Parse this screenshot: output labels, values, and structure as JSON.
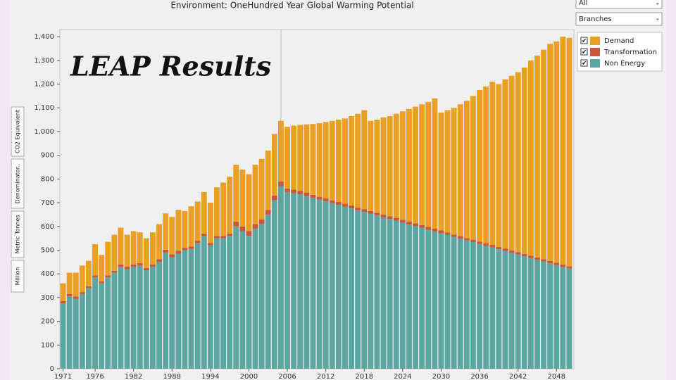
{
  "ui": {
    "dropdowns": [
      "All",
      "Branches"
    ],
    "side_tabs": [
      "CO2 Equivalent",
      "Denominator..",
      "Metric Tonnes",
      "Million"
    ],
    "overlay_title": "LEAP Results"
  },
  "chart_data": {
    "type": "stacked_bar",
    "title": "Environment: OneHundred Year Global Warming Potential",
    "categories": [
      "1971",
      null,
      null,
      null,
      null,
      "1976",
      null,
      null,
      null,
      null,
      null,
      "1982",
      null,
      null,
      null,
      null,
      null,
      "1988",
      null,
      null,
      null,
      null,
      null,
      "1994",
      null,
      null,
      null,
      null,
      null,
      "2000",
      null,
      null,
      null,
      null,
      null,
      "2006",
      null,
      null,
      null,
      null,
      null,
      "2012",
      null,
      null,
      null,
      null,
      null,
      "2018",
      null,
      null,
      null,
      null,
      null,
      "2024",
      null,
      null,
      null,
      null,
      null,
      "2030",
      null,
      null,
      null,
      null,
      null,
      "2036",
      null,
      null,
      null,
      null,
      null,
      "2042",
      null,
      null,
      null,
      null,
      null,
      "2048",
      null,
      null
    ],
    "series": [
      {
        "name": "Demand",
        "color": "#e9a024",
        "values": [
          75,
          90,
          100,
          112,
          107,
          132,
          112,
          142,
          152,
          155,
          135,
          140,
          130,
          125,
          135,
          148,
          153,
          158,
          173,
          155,
          170,
          165,
          175,
          170,
          205,
          225,
          240,
          240,
          240,
          240,
          250,
          255,
          250,
          260,
          255,
          260,
          270,
          278,
          287,
          299,
          310,
          322,
          335,
          347,
          360,
          377,
          395,
          417,
          380,
          392,
          410,
          422,
          439,
          457,
          474,
          492,
          509,
          527,
          549,
          497,
          516,
          534,
          556,
          579,
          606,
          639,
          661,
          688,
          686,
          713,
          736,
          758,
          786,
          823,
          851,
          883,
          916,
          933,
          961,
          963
        ]
      },
      {
        "name": "Transformation",
        "color": "#c9573b",
        "values": [
          10,
          10,
          10,
          8,
          8,
          8,
          8,
          8,
          8,
          10,
          10,
          10,
          10,
          10,
          10,
          12,
          12,
          12,
          12,
          10,
          10,
          10,
          10,
          10,
          10,
          10,
          10,
          20,
          20,
          20,
          20,
          20,
          20,
          20,
          20,
          15,
          15,
          15,
          15,
          12,
          12,
          12,
          12,
          12,
          12,
          12,
          12,
          12,
          12,
          12,
          12,
          12,
          12,
          12,
          12,
          12,
          12,
          12,
          12,
          12,
          10,
          10,
          10,
          10,
          10,
          10,
          10,
          10,
          10,
          10,
          10,
          10,
          10,
          10,
          10,
          10,
          10,
          10,
          10,
          10
        ]
      },
      {
        "name": "Non Energy",
        "color": "#5ba6a1",
        "values": [
          275,
          305,
          295,
          315,
          340,
          385,
          360,
          385,
          405,
          430,
          420,
          430,
          435,
          415,
          430,
          450,
          490,
          470,
          485,
          500,
          505,
          530,
          560,
          520,
          550,
          550,
          560,
          600,
          580,
          560,
          590,
          610,
          650,
          710,
          770,
          745,
          740,
          735,
          728,
          721,
          713,
          706,
          698,
          691,
          683,
          676,
          668,
          661,
          653,
          646,
          638,
          631,
          624,
          616,
          609,
          601,
          594,
          586,
          579,
          571,
          564,
          556,
          549,
          541,
          534,
          526,
          519,
          512,
          504,
          497,
          489,
          482,
          474,
          467,
          459,
          452,
          444,
          437,
          429,
          422
        ]
      }
    ],
    "ylim": [
      0,
      1430
    ],
    "yticks": [
      0,
      100,
      200,
      300,
      400,
      500,
      600,
      700,
      800,
      900,
      {
        "value": 1000,
        "label": "1,000"
      },
      {
        "value": 1100,
        "label": "1,100"
      },
      {
        "value": 1200,
        "label": "1,200"
      },
      {
        "value": 1300,
        "label": "1,300"
      },
      {
        "value": 1400,
        "label": "1,400"
      }
    ]
  }
}
